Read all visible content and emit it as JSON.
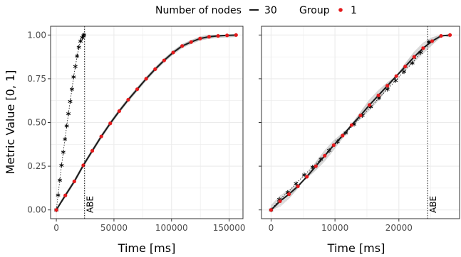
{
  "legend": {
    "nodes_title": "Number of nodes",
    "nodes_value": "30",
    "group_title": "Group",
    "group_value": "1"
  },
  "colors": {
    "line": "#1a1a1a",
    "point": "#e41a1c",
    "band": "#bfbfbf",
    "grid": "#ebebeb",
    "frame": "#333333"
  },
  "chart_data": [
    {
      "type": "line",
      "ylabel": "Metric Value [0, 1]",
      "xlabel": "Time [ms]",
      "xlim": [
        -5000,
        162000
      ],
      "ylim": [
        -0.05,
        1.05
      ],
      "x_ticks": [
        0,
        50000,
        100000,
        150000
      ],
      "x_tick_labels": [
        "0",
        "50000",
        "100000",
        "150000"
      ],
      "y_ticks": [
        0,
        0.25,
        0.5,
        0.75,
        1
      ],
      "y_tick_labels": [
        "0.00",
        "0.25",
        "0.50",
        "0.75",
        "1.00"
      ],
      "vline": {
        "x": 24500,
        "label": "ABE"
      },
      "series": [
        {
          "x": [
            0,
            7800,
            15600,
            23400,
            31200,
            39000,
            46800,
            54600,
            62400,
            70200,
            78000,
            85800,
            93600,
            101400,
            109200,
            117000,
            124800,
            132600,
            140400,
            148200,
            156000
          ],
          "values": [
            0,
            0.083,
            0.163,
            0.255,
            0.338,
            0.42,
            0.495,
            0.565,
            0.63,
            0.69,
            0.75,
            0.805,
            0.855,
            0.9,
            0.937,
            0.96,
            0.98,
            0.99,
            0.995,
            0.998,
            1.0
          ]
        },
        {
          "x": [
            0,
            1500,
            3000,
            4500,
            6000,
            7500,
            9000,
            10500,
            12000,
            13500,
            15000,
            16500,
            18000,
            19500,
            21000,
            22500,
            23500,
            24000
          ],
          "values": [
            0,
            0.085,
            0.17,
            0.255,
            0.33,
            0.405,
            0.48,
            0.55,
            0.62,
            0.69,
            0.76,
            0.82,
            0.88,
            0.93,
            0.965,
            0.985,
            0.995,
            1.0
          ]
        }
      ]
    },
    {
      "type": "line",
      "xlabel": "Time [ms]",
      "xlim": [
        -1500,
        29500
      ],
      "ylim": [
        -0.05,
        1.05
      ],
      "x_ticks": [
        0,
        10000,
        20000
      ],
      "x_tick_labels": [
        "0",
        "10000",
        "20000"
      ],
      "y_ticks": [
        0,
        0.25,
        0.5,
        0.75,
        1
      ],
      "vline": {
        "x": 24500,
        "label": "ABE"
      },
      "series": [
        {
          "x": [
            0,
            1400,
            2800,
            4200,
            5600,
            7000,
            8400,
            9800,
            11200,
            12600,
            14000,
            15400,
            16800,
            18200,
            19600,
            21000,
            22400,
            23800,
            25200,
            26600,
            28000
          ],
          "values": [
            0,
            0.05,
            0.09,
            0.135,
            0.19,
            0.25,
            0.31,
            0.37,
            0.425,
            0.485,
            0.54,
            0.6,
            0.655,
            0.71,
            0.765,
            0.82,
            0.875,
            0.925,
            0.965,
            0.995,
            1.0
          ]
        },
        {
          "x": [
            0,
            1300,
            2600,
            3900,
            5200,
            6500,
            7800,
            9100,
            10400,
            11700,
            13000,
            14300,
            15600,
            16900,
            18200,
            19500,
            20800,
            22100,
            23400,
            24700
          ],
          "values": [
            0,
            0.06,
            0.1,
            0.15,
            0.2,
            0.245,
            0.29,
            0.34,
            0.39,
            0.44,
            0.49,
            0.54,
            0.59,
            0.64,
            0.69,
            0.74,
            0.79,
            0.84,
            0.9,
            0.96
          ]
        }
      ]
    }
  ]
}
